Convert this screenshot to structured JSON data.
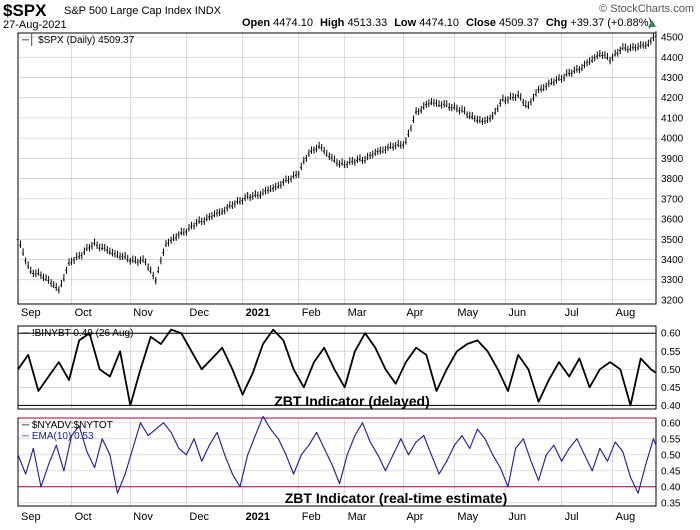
{
  "header": {
    "symbol": "$SPX",
    "name": "S&P 500 Large Cap Index",
    "exchange": "INDX",
    "date": "27-Aug-2021",
    "ohlc": [
      {
        "label": "Open",
        "value": "4474.10"
      },
      {
        "label": "High",
        "value": "4513.33"
      },
      {
        "label": "Low",
        "value": "4474.10"
      },
      {
        "label": "Close",
        "value": "4509.37"
      },
      {
        "label": "Chg",
        "value": "+39.37 (+0.88%)"
      }
    ],
    "watermark": "© StockCharts.com",
    "up_arrow_color": "#2e8b57"
  },
  "chart_data": [
    {
      "type": "candlestick",
      "legend": "$SPX (Daily) 4509.37",
      "ylim": [
        3180,
        4520
      ],
      "yticks": [
        3200,
        3300,
        3400,
        3500,
        3600,
        3700,
        3800,
        3900,
        4000,
        4100,
        4200,
        4300,
        4400,
        4500
      ],
      "series": [
        {
          "x": [
            0,
            5,
            10,
            16,
            20,
            30,
            36,
            44,
            50,
            54,
            58,
            64,
            70,
            80,
            88,
            96,
            104,
            110,
            114,
            118,
            126,
            136,
            142,
            152,
            156,
            162,
            172,
            182,
            186,
            190,
            196,
            200,
            204,
            210,
            216,
            222,
            228,
            232,
            236,
            246,
            250
          ],
          "values": [
            3500,
            3340,
            3320,
            3250,
            3380,
            3480,
            3440,
            3400,
            3390,
            3300,
            3480,
            3530,
            3580,
            3640,
            3700,
            3730,
            3780,
            3830,
            3930,
            3960,
            3870,
            3900,
            3940,
            3980,
            4130,
            4180,
            4150,
            4080,
            4110,
            4190,
            4210,
            4160,
            4240,
            4280,
            4320,
            4360,
            4420,
            4390,
            4440,
            4460,
            4509.37
          ]
        }
      ]
    },
    {
      "type": "line",
      "legend": "!BINYBT 0.49 (26 Aug)",
      "annotation": "ZBT Indicator (delayed)",
      "ylim": [
        0.39,
        0.62
      ],
      "yticks": [
        0.4,
        0.45,
        0.5,
        0.55,
        0.6
      ],
      "hlines": [
        0.4,
        0.6
      ],
      "series": [
        {
          "x": [
            0,
            4,
            8,
            12,
            16,
            20,
            24,
            28,
            32,
            36,
            40,
            44,
            48,
            52,
            56,
            60,
            64,
            68,
            72,
            76,
            80,
            84,
            88,
            92,
            96,
            100,
            104,
            108,
            112,
            116,
            120,
            124,
            128,
            132,
            136,
            140,
            144,
            148,
            152,
            156,
            160,
            164,
            168,
            172,
            176,
            180,
            184,
            188,
            192,
            196,
            200,
            204,
            208,
            212,
            216,
            220,
            224,
            228,
            232,
            236,
            240,
            244,
            248,
            250
          ],
          "values": [
            0.5,
            0.54,
            0.44,
            0.48,
            0.52,
            0.47,
            0.58,
            0.6,
            0.5,
            0.48,
            0.55,
            0.4,
            0.5,
            0.59,
            0.57,
            0.61,
            0.6,
            0.55,
            0.5,
            0.53,
            0.56,
            0.5,
            0.43,
            0.49,
            0.57,
            0.61,
            0.58,
            0.5,
            0.45,
            0.52,
            0.56,
            0.5,
            0.45,
            0.55,
            0.6,
            0.56,
            0.5,
            0.46,
            0.52,
            0.56,
            0.54,
            0.44,
            0.5,
            0.55,
            0.57,
            0.58,
            0.55,
            0.5,
            0.44,
            0.54,
            0.5,
            0.41,
            0.47,
            0.52,
            0.48,
            0.53,
            0.45,
            0.5,
            0.52,
            0.5,
            0.4,
            0.53,
            0.5,
            0.49
          ]
        }
      ]
    },
    {
      "type": "line",
      "legend": "$NYADV:$NYTOT",
      "legend2": "EMA(10) 0.53",
      "annotation": "ZBT Indicator (real-time estimate)",
      "ylim": [
        0.34,
        0.615
      ],
      "yticks": [
        0.35,
        0.4,
        0.45,
        0.5,
        0.55,
        0.6
      ],
      "hlines": [
        0.4,
        0.615
      ],
      "series": [
        {
          "x": [
            0,
            3,
            6,
            9,
            12,
            15,
            18,
            21,
            24,
            27,
            30,
            33,
            36,
            39,
            42,
            45,
            48,
            51,
            54,
            57,
            60,
            63,
            66,
            69,
            72,
            75,
            78,
            81,
            84,
            87,
            90,
            93,
            96,
            99,
            102,
            105,
            108,
            111,
            114,
            117,
            120,
            123,
            126,
            129,
            132,
            135,
            138,
            141,
            144,
            147,
            150,
            153,
            156,
            159,
            162,
            165,
            168,
            171,
            174,
            177,
            180,
            183,
            186,
            189,
            192,
            195,
            198,
            201,
            204,
            207,
            210,
            213,
            216,
            219,
            222,
            225,
            228,
            231,
            234,
            237,
            240,
            243,
            246,
            249,
            250
          ],
          "values": [
            0.5,
            0.44,
            0.52,
            0.4,
            0.47,
            0.53,
            0.45,
            0.56,
            0.59,
            0.51,
            0.46,
            0.55,
            0.5,
            0.38,
            0.44,
            0.52,
            0.6,
            0.56,
            0.58,
            0.6,
            0.57,
            0.52,
            0.5,
            0.55,
            0.48,
            0.53,
            0.57,
            0.5,
            0.44,
            0.4,
            0.5,
            0.56,
            0.62,
            0.58,
            0.55,
            0.5,
            0.44,
            0.5,
            0.53,
            0.57,
            0.52,
            0.47,
            0.41,
            0.5,
            0.56,
            0.6,
            0.54,
            0.5,
            0.45,
            0.5,
            0.55,
            0.5,
            0.54,
            0.56,
            0.5,
            0.44,
            0.48,
            0.53,
            0.56,
            0.52,
            0.58,
            0.55,
            0.5,
            0.46,
            0.4,
            0.52,
            0.55,
            0.48,
            0.42,
            0.5,
            0.53,
            0.48,
            0.52,
            0.55,
            0.5,
            0.45,
            0.52,
            0.48,
            0.54,
            0.51,
            0.43,
            0.38,
            0.47,
            0.55,
            0.53
          ]
        }
      ]
    }
  ],
  "x_labels": [
    {
      "label": "Sep",
      "x": 0
    },
    {
      "label": "Oct",
      "x": 21
    },
    {
      "label": "Nov",
      "x": 44
    },
    {
      "label": "Dec",
      "x": 66
    },
    {
      "label": "2021",
      "x": 88,
      "bold": true
    },
    {
      "label": "Feb",
      "x": 110
    },
    {
      "label": "Mar",
      "x": 128
    },
    {
      "label": "Apr",
      "x": 151
    },
    {
      "label": "May",
      "x": 171
    },
    {
      "label": "Jun",
      "x": 191
    },
    {
      "label": "Jul",
      "x": 213
    },
    {
      "label": "Aug",
      "x": 233
    }
  ],
  "colors": {
    "price": "#000000",
    "breadth": "#1a1aa6",
    "ref_line": "#a0003c",
    "grid": "#cccccc"
  }
}
